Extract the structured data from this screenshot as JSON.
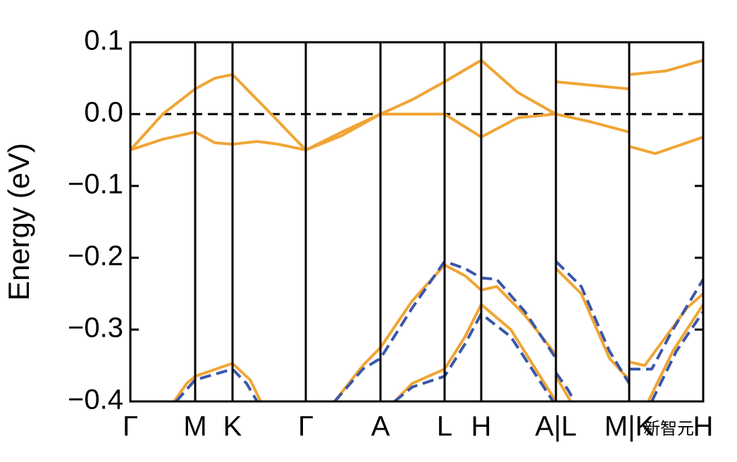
{
  "chart_data": {
    "type": "line",
    "ylabel": "Energy (eV)",
    "xlim": [
      0,
      813
    ],
    "ylim": [
      -0.4,
      0.1
    ],
    "yticks": [
      0.1,
      {
        "value": 0.0,
        "label": "0.0"
      },
      {
        "value": -0.1,
        "label": "−0.1"
      },
      {
        "value": -0.2,
        "label": "−0.2"
      },
      {
        "value": -0.3,
        "label": "−0.3"
      },
      {
        "value": -0.4,
        "label": "−0.4"
      }
    ],
    "xticks": [
      {
        "value": 0,
        "label": "Γ"
      },
      {
        "value": 92,
        "label": "M"
      },
      {
        "value": 145,
        "label": "K"
      },
      {
        "value": 249,
        "label": "Γ"
      },
      {
        "value": 355,
        "label": "A"
      },
      {
        "value": 446,
        "label": "L"
      },
      {
        "value": 498,
        "label": "H"
      },
      {
        "value": 604,
        "label": "A|L"
      },
      {
        "value": 708,
        "label": "M|K"
      },
      {
        "value": 813,
        "label": "H"
      }
    ],
    "hline": 0.0,
    "watermark": "新智元",
    "series": [
      {
        "color": "#f0a535",
        "dashed": false,
        "x": [
          0,
          46,
          92,
          120,
          145,
          200,
          249,
          300,
          355,
          400,
          446,
          498,
          550,
          604
        ],
        "values": [
          -0.05,
          0.0,
          0.035,
          0.05,
          0.055,
          0.0,
          -0.05,
          -0.025,
          0.0,
          0.02,
          0.045,
          0.075,
          0.03,
          0.0
        ]
      },
      {
        "color": "#f0a535",
        "dashed": false,
        "x": [
          0,
          46,
          92,
          120,
          145,
          180,
          210,
          249,
          300,
          355,
          446,
          498,
          550,
          604
        ],
        "values": [
          -0.05,
          -0.035,
          -0.025,
          -0.04,
          -0.042,
          -0.038,
          -0.042,
          -0.05,
          -0.03,
          0.0,
          0.0,
          -0.032,
          -0.005,
          0.0
        ]
      },
      {
        "color": "#f0a535",
        "dashed": false,
        "x": [
          604,
          708
        ],
        "values": [
          0.045,
          0.035
        ]
      },
      {
        "color": "#f0a535",
        "dashed": false,
        "x": [
          604,
          650,
          708
        ],
        "values": [
          0.0,
          -0.01,
          -0.025
        ]
      },
      {
        "color": "#f0a535",
        "dashed": false,
        "x": [
          708,
          760,
          813
        ],
        "values": [
          0.055,
          0.06,
          0.075
        ]
      },
      {
        "color": "#f0a535",
        "dashed": false,
        "x": [
          708,
          745,
          813
        ],
        "values": [
          -0.045,
          -0.055,
          -0.032
        ]
      },
      {
        "color": "#f0a535",
        "dashed": false,
        "x": [
          62,
          80,
          92,
          145,
          170,
          185
        ],
        "values": [
          -0.4,
          -0.375,
          -0.365,
          -0.347,
          -0.37,
          -0.4
        ]
      },
      {
        "color": "#3a57a8",
        "dashed": true,
        "x": [
          65,
          92,
          145,
          165,
          180
        ],
        "values": [
          -0.4,
          -0.37,
          -0.355,
          -0.375,
          -0.4
        ]
      },
      {
        "color": "#f0a535",
        "dashed": false,
        "x": [
          290,
          330,
          355,
          400,
          446,
          475,
          498,
          520,
          560,
          604
        ],
        "values": [
          -0.4,
          -0.35,
          -0.325,
          -0.26,
          -0.21,
          -0.225,
          -0.245,
          -0.24,
          -0.28,
          -0.335
        ]
      },
      {
        "color": "#3a57a8",
        "dashed": true,
        "x": [
          290,
          330,
          355,
          400,
          446,
          475,
          498,
          520,
          560,
          604
        ],
        "values": [
          -0.4,
          -0.355,
          -0.34,
          -0.27,
          -0.205,
          -0.215,
          -0.228,
          -0.23,
          -0.275,
          -0.34
        ]
      },
      {
        "color": "#f0a535",
        "dashed": false,
        "x": [
          375,
          400,
          446,
          475,
          498,
          540,
          604
        ],
        "values": [
          -0.4,
          -0.375,
          -0.355,
          -0.31,
          -0.265,
          -0.3,
          -0.4
        ]
      },
      {
        "color": "#3a57a8",
        "dashed": true,
        "x": [
          375,
          400,
          446,
          475,
          498,
          540,
          600
        ],
        "values": [
          -0.4,
          -0.38,
          -0.365,
          -0.32,
          -0.278,
          -0.31,
          -0.4
        ]
      },
      {
        "color": "#f0a535",
        "dashed": false,
        "x": [
          604,
          640,
          680,
          708
        ],
        "values": [
          -0.215,
          -0.25,
          -0.34,
          -0.37
        ]
      },
      {
        "color": "#3a57a8",
        "dashed": true,
        "x": [
          604,
          640,
          680,
          708
        ],
        "values": [
          -0.205,
          -0.24,
          -0.33,
          -0.375
        ]
      },
      {
        "color": "#f0a535",
        "dashed": false,
        "x": [
          604,
          625
        ],
        "values": [
          -0.365,
          -0.4
        ]
      },
      {
        "color": "#3a57a8",
        "dashed": true,
        "x": [
          604,
          622,
          630
        ],
        "values": [
          -0.36,
          -0.385,
          -0.4
        ]
      },
      {
        "color": "#f0a535",
        "dashed": false,
        "x": [
          708,
          730,
          760,
          790,
          813
        ],
        "values": [
          -0.345,
          -0.35,
          -0.31,
          -0.27,
          -0.25
        ]
      },
      {
        "color": "#3a57a8",
        "dashed": true,
        "x": [
          708,
          740,
          770,
          813
        ],
        "values": [
          -0.355,
          -0.355,
          -0.3,
          -0.23
        ]
      },
      {
        "color": "#f0a535",
        "dashed": false,
        "x": [
          735,
          770,
          813
        ],
        "values": [
          -0.4,
          -0.33,
          -0.265
        ]
      },
      {
        "color": "#3a57a8",
        "dashed": true,
        "x": [
          740,
          775,
          813
        ],
        "values": [
          -0.4,
          -0.33,
          -0.275
        ]
      }
    ]
  }
}
